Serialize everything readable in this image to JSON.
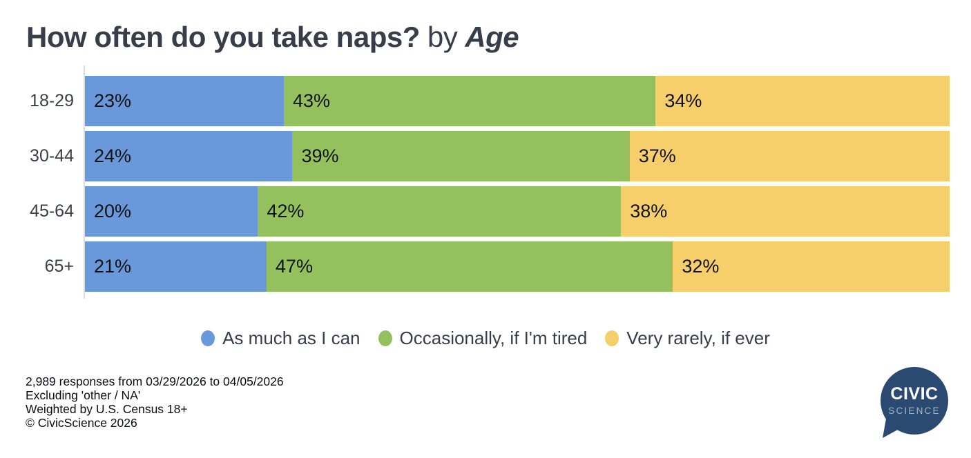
{
  "title": {
    "question": "How often do you take naps?",
    "by": "by",
    "group": "Age"
  },
  "chart_data": {
    "type": "bar",
    "orientation": "horizontal",
    "stacked": true,
    "grid": false,
    "legend_position": "bottom",
    "xlim": [
      0,
      100
    ],
    "value_suffix": "%",
    "categories": [
      "18-29",
      "30-44",
      "45-64",
      "65+"
    ],
    "series": [
      {
        "name": "As much as I can",
        "color": "#6998DB",
        "values": [
          23,
          24,
          20,
          21
        ]
      },
      {
        "name": "Occasionally, if I'm tired",
        "color": "#94C15E",
        "values": [
          43,
          39,
          42,
          47
        ]
      },
      {
        "name": "Very rarely, if ever",
        "color": "#F6CF6A",
        "values": [
          34,
          37,
          38,
          32
        ]
      }
    ]
  },
  "footer": {
    "lines": [
      "2,989 responses from 03/29/2026 to 04/05/2026",
      "Excluding 'other / NA'",
      "Weighted by U.S. Census 18+",
      "© CivicScience 2026"
    ]
  },
  "logo": {
    "line1": "CIVIC",
    "line2": "SCIENCE",
    "bubble_color": "#2B4A72"
  },
  "colors": {
    "title_text": "#373E4A",
    "row_label_text": "#3B4048",
    "value_label_text": "#101216",
    "axis_line": "#D9DCE2",
    "background": "#ffffff"
  }
}
